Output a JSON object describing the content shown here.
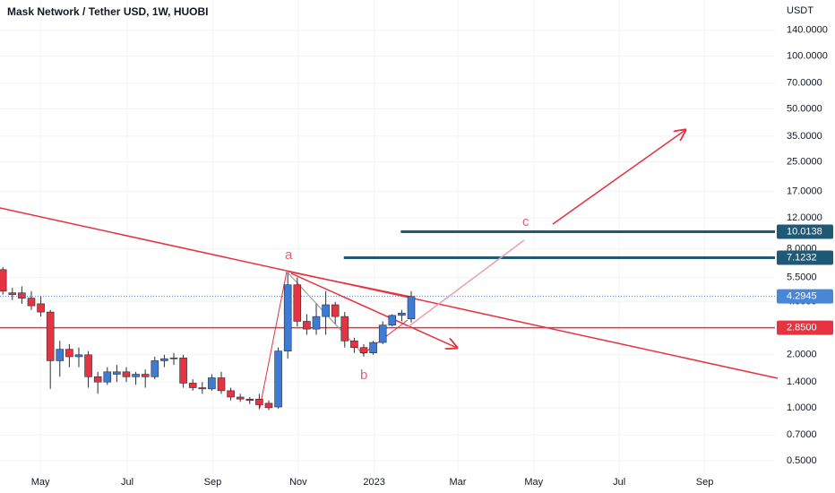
{
  "chart_data": {
    "type": "candlestick",
    "title": "Mask Network / Tether USD, 1W, HUOBI",
    "y_unit": "USDT",
    "log_scale": true,
    "colors": {
      "up": "#3d7bd4",
      "down": "#e5333f"
    },
    "candles": {
      "open": [
        6.1,
        4.5,
        4.5,
        4.2,
        3.9,
        3.5,
        1.85,
        2.15,
        1.95,
        2.0,
        1.5,
        1.4,
        1.55,
        1.6,
        1.5,
        1.55,
        1.5,
        1.85,
        1.9,
        1.92,
        1.38,
        1.3,
        1.28,
        1.48,
        1.25,
        1.15,
        1.12,
        1.12,
        1.06,
        1.01,
        2.1,
        5.0,
        3.1,
        2.8,
        3.3,
        3.85,
        3.3,
        2.4,
        2.2,
        2.05,
        2.35,
        2.95,
        3.35,
        3.2
      ],
      "high": [
        6.3,
        4.8,
        4.9,
        4.6,
        4.3,
        3.6,
        2.4,
        2.3,
        2.2,
        2.1,
        1.6,
        1.7,
        1.75,
        1.7,
        1.6,
        1.65,
        1.95,
        2.0,
        2.05,
        2.0,
        1.45,
        1.4,
        1.55,
        1.6,
        1.3,
        1.2,
        1.15,
        1.2,
        1.1,
        2.2,
        5.9,
        5.5,
        3.4,
        3.9,
        4.6,
        4.0,
        3.5,
        2.5,
        2.3,
        2.4,
        3.1,
        3.4,
        3.6,
        4.6
      ],
      "low": [
        4.4,
        4.1,
        3.9,
        3.6,
        3.3,
        1.28,
        1.5,
        1.7,
        1.7,
        1.3,
        1.2,
        1.35,
        1.4,
        1.4,
        1.35,
        1.3,
        1.45,
        1.7,
        1.75,
        1.3,
        1.25,
        1.2,
        1.25,
        1.2,
        1.1,
        1.08,
        1.05,
        0.98,
        0.97,
        0.99,
        1.9,
        2.9,
        2.6,
        2.6,
        2.6,
        3.0,
        2.2,
        2.05,
        1.95,
        2.0,
        2.3,
        2.9,
        3.1,
        3.05
      ],
      "close": [
        4.6,
        4.4,
        4.2,
        3.8,
        3.5,
        1.85,
        2.15,
        1.95,
        2.0,
        1.5,
        1.4,
        1.6,
        1.6,
        1.5,
        1.55,
        1.5,
        1.85,
        1.9,
        1.92,
        1.38,
        1.3,
        1.28,
        1.48,
        1.25,
        1.15,
        1.12,
        1.1,
        1.04,
        1.0,
        2.1,
        5.0,
        3.1,
        2.8,
        3.3,
        3.85,
        3.3,
        2.4,
        2.2,
        2.05,
        2.35,
        2.95,
        3.35,
        3.45,
        4.2945
      ]
    },
    "xlim": [
      -0.3,
      81.3
    ],
    "xticks": [
      {
        "value": 3.96,
        "label": "May"
      },
      {
        "value": 13.1,
        "label": "Jul"
      },
      {
        "value": 22.1,
        "label": "Sep"
      },
      {
        "value": 31.1,
        "label": "Nov"
      },
      {
        "value": 39.1,
        "label": "2023"
      },
      {
        "value": 47.9,
        "label": "Mar"
      },
      {
        "value": 55.9,
        "label": "May"
      },
      {
        "value": 64.9,
        "label": "Jul"
      },
      {
        "value": 73.9,
        "label": "Sep"
      }
    ],
    "ylim": [
      0.424,
      208
    ],
    "yticks": [
      {
        "value": 140,
        "label": "140.0000"
      },
      {
        "value": 100,
        "label": "100.0000"
      },
      {
        "value": 70,
        "label": "70.0000"
      },
      {
        "value": 50,
        "label": "50.0000"
      },
      {
        "value": 35,
        "label": "35.0000"
      },
      {
        "value": 25,
        "label": "25.0000"
      },
      {
        "value": 17,
        "label": "17.0000"
      },
      {
        "value": 12,
        "label": "12.0000"
      },
      {
        "value": 8,
        "label": "8.0000"
      },
      {
        "value": 5.5,
        "label": "5.5000"
      },
      {
        "value": 4,
        "label": "4.0000"
      },
      {
        "value": 2,
        "label": "2.0000"
      },
      {
        "value": 1.4,
        "label": "1.4000"
      },
      {
        "value": 1,
        "label": "1.0000"
      },
      {
        "value": 0.7,
        "label": "0.7000"
      },
      {
        "value": 0.5,
        "label": "0.5000"
      }
    ],
    "hlines": [
      {
        "value": 10.0138,
        "label": "10.0138",
        "color": "#1e5a78",
        "from": 41.9
      },
      {
        "value": 7.1232,
        "label": "7.1232",
        "color": "#1e5a78",
        "from": 35.9
      },
      {
        "value": 2.85,
        "label": "2.8500",
        "color": "#e5333f",
        "from": -0.3
      }
    ],
    "last_price": {
      "value": 4.2945,
      "label": "4.2945",
      "color": "#4a86d8"
    },
    "annotations": [
      {
        "text": "a"
      },
      {
        "text": "b"
      },
      {
        "text": "c"
      }
    ]
  }
}
